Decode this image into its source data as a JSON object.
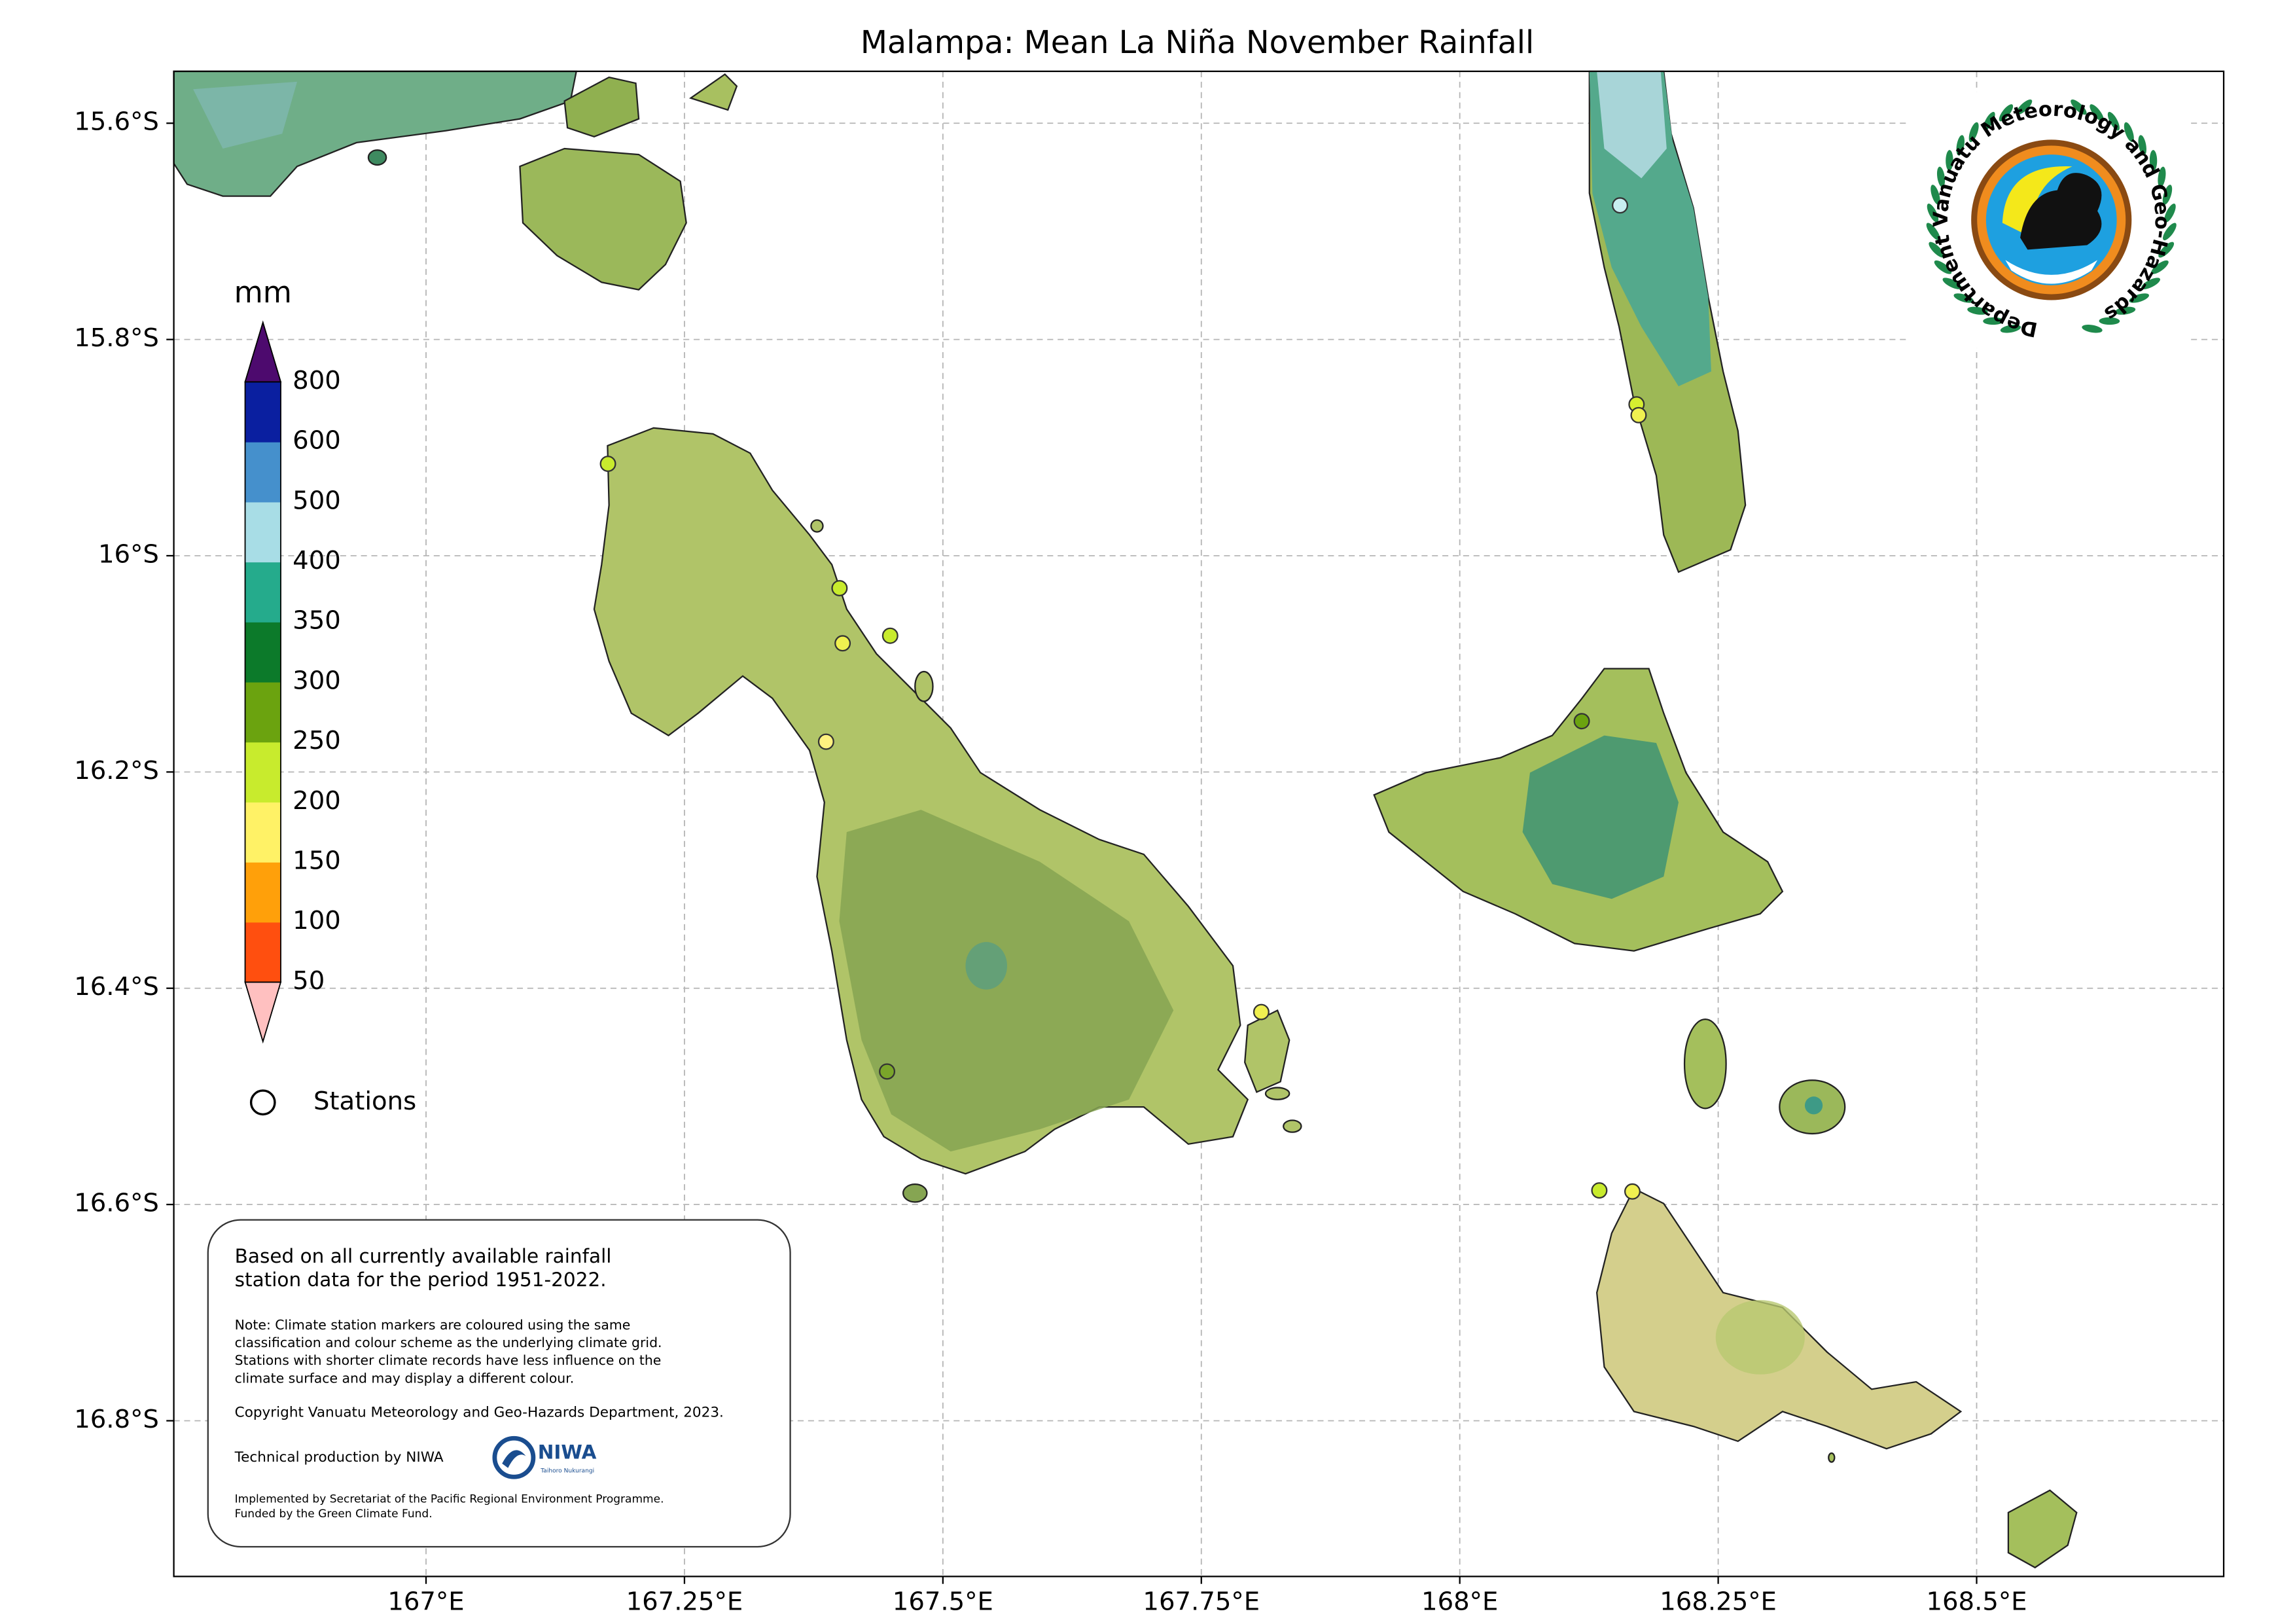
{
  "map": {
    "title": "Malampa: Mean La Niña November Rainfall",
    "xlim": [
      166.756,
      168.739
    ],
    "ylim": [
      -16.944,
      -15.552
    ],
    "grid": true,
    "xticks": [
      {
        "value": 167,
        "label": "167°E"
      },
      {
        "value": 167.25,
        "label": "167.25°E"
      },
      {
        "value": 167.5,
        "label": "167.5°E"
      },
      {
        "value": 167.75,
        "label": "167.75°E"
      },
      {
        "value": 168,
        "label": "168°E"
      },
      {
        "value": 168.25,
        "label": "168.25°E"
      },
      {
        "value": 168.5,
        "label": "168.5°E"
      }
    ],
    "yticks": [
      {
        "value": -15.6,
        "label": "15.6°S"
      },
      {
        "value": -15.8,
        "label": "15.8°S"
      },
      {
        "value": -16,
        "label": "16°S"
      },
      {
        "value": -16.2,
        "label": "16.2°S"
      },
      {
        "value": -16.4,
        "label": "16.4°S"
      },
      {
        "value": -16.6,
        "label": "16.6°S"
      },
      {
        "value": -16.8,
        "label": "16.8°S"
      }
    ],
    "colorbar": {
      "unit": "mm",
      "levels": [
        50,
        100,
        150,
        200,
        250,
        300,
        350,
        400,
        500,
        600,
        800
      ],
      "colors": [
        "#ff4f0f",
        "#ffa00a",
        "#fff266",
        "#c8eb2d",
        "#6ba30f",
        "#0c7a2a",
        "#25ab8c",
        "#a8dde6",
        "#4590cc",
        "#0a1fa0"
      ],
      "under_color": "#ffc0c0",
      "over_color": "#4d0a6e"
    },
    "stations": {
      "label": "Stations",
      "points": [
        {
          "lon": 168.155,
          "lat": -15.676,
          "color": "#c8eef0"
        },
        {
          "lon": 168.171,
          "lat": -15.86,
          "color": "#d6ee30"
        },
        {
          "lon": 168.173,
          "lat": -15.87,
          "color": "#f0f050"
        },
        {
          "lon": 167.176,
          "lat": -15.915,
          "color": "#c8eb2d"
        },
        {
          "lon": 167.4,
          "lat": -16.03,
          "color": "#c8eb2d"
        },
        {
          "lon": 167.449,
          "lat": -16.074,
          "color": "#c8eb2d"
        },
        {
          "lon": 167.403,
          "lat": -16.081,
          "color": "#f0f050"
        },
        {
          "lon": 167.387,
          "lat": -16.172,
          "color": "#fff280"
        },
        {
          "lon": 168.118,
          "lat": -16.153,
          "color": "#6ba30f"
        },
        {
          "lon": 167.808,
          "lat": -16.422,
          "color": "#f0f050"
        },
        {
          "lon": 167.446,
          "lat": -16.477,
          "color": "#7aa52a"
        },
        {
          "lon": 168.135,
          "lat": -16.587,
          "color": "#c8eb2d"
        },
        {
          "lon": 168.167,
          "lat": -16.588,
          "color": "#f0f050"
        }
      ]
    },
    "note": {
      "lead": [
        "Based on all currently available rainfall",
        "station data for the period 1951-2022."
      ],
      "details": [
        "Note: Climate station markers are coloured using the same",
        "classification and colour scheme as the underlying climate grid.",
        "Stations with shorter climate records have less influence on the",
        "climate surface and may display a different colour."
      ],
      "copyright": "Copyright Vanuatu Meteorology and Geo-Hazards Department, 2023.",
      "production": "Technical production by NIWA",
      "niwa": "NIWA",
      "niwa_tagline": "Taihoro Nukurangi",
      "funding": [
        "Implemented by Secretariat of the Pacific Regional Environment Programme.",
        "Funded by the Green Climate Fund."
      ]
    },
    "logo": {
      "text": "Department Vanuatu Meteorology and Geo-Hazards"
    }
  }
}
